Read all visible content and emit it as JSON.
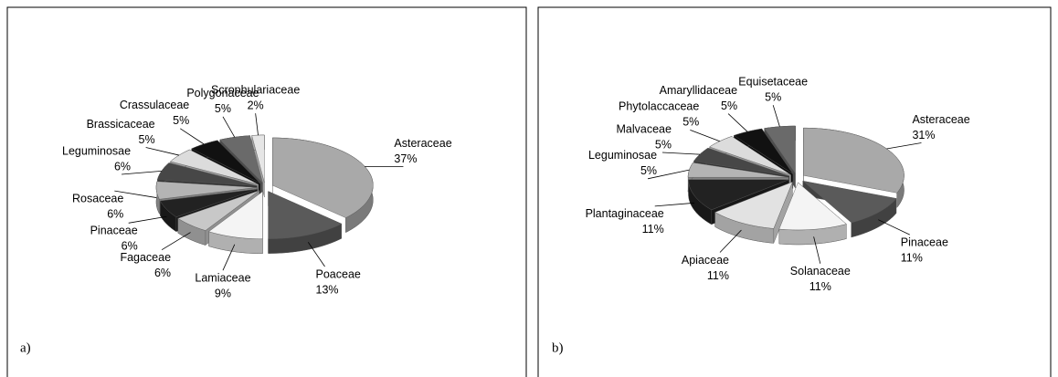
{
  "chart_data": [
    {
      "type": "pie",
      "label": "a)",
      "categories": [
        "Asteraceae",
        "Poaceae",
        "Lamiaceae",
        "Fagaceae",
        "Pinaceae",
        "Rosaceae",
        "Leguminosae",
        "Brassicaceae",
        "Crassulaceae",
        "Polygonaceae",
        "Scrophulariaceae"
      ],
      "values": [
        37,
        13,
        9,
        6,
        6,
        6,
        6,
        5,
        5,
        5,
        2
      ],
      "value_labels": [
        "37%",
        "13%",
        "9%",
        "6%",
        "6%",
        "6%",
        "6%",
        "5%",
        "5%",
        "5%",
        "2%"
      ],
      "colors": [
        "#a9a9a9",
        "#5a5a5a",
        "#f4f4f4",
        "#c8c8c8",
        "#222222",
        "#b4b4b4",
        "#474747",
        "#dcdcdc",
        "#111111",
        "#6a6a6a",
        "#e6e6e6"
      ]
    },
    {
      "type": "pie",
      "label": "b)",
      "categories": [
        "Asteraceae",
        "Pinaceae",
        "Solanaceae",
        "Apiaceae",
        "Plantaginaceae",
        "Leguminosae",
        "Malvaceae",
        "Phytolaccaceae",
        "Amaryllidaceae",
        "Equisetaceae"
      ],
      "values": [
        31,
        11,
        11,
        11,
        11,
        5,
        5,
        5,
        5,
        5
      ],
      "value_labels": [
        "31%",
        "11%",
        "11%",
        "11%",
        "11%",
        "5%",
        "5%",
        "5%",
        "5%",
        "5%"
      ],
      "colors": [
        "#a9a9a9",
        "#5a5a5a",
        "#f4f4f4",
        "#e2e2e2",
        "#222222",
        "#b4b4b4",
        "#474747",
        "#dcdcdc",
        "#111111",
        "#6a6a6a"
      ]
    }
  ]
}
